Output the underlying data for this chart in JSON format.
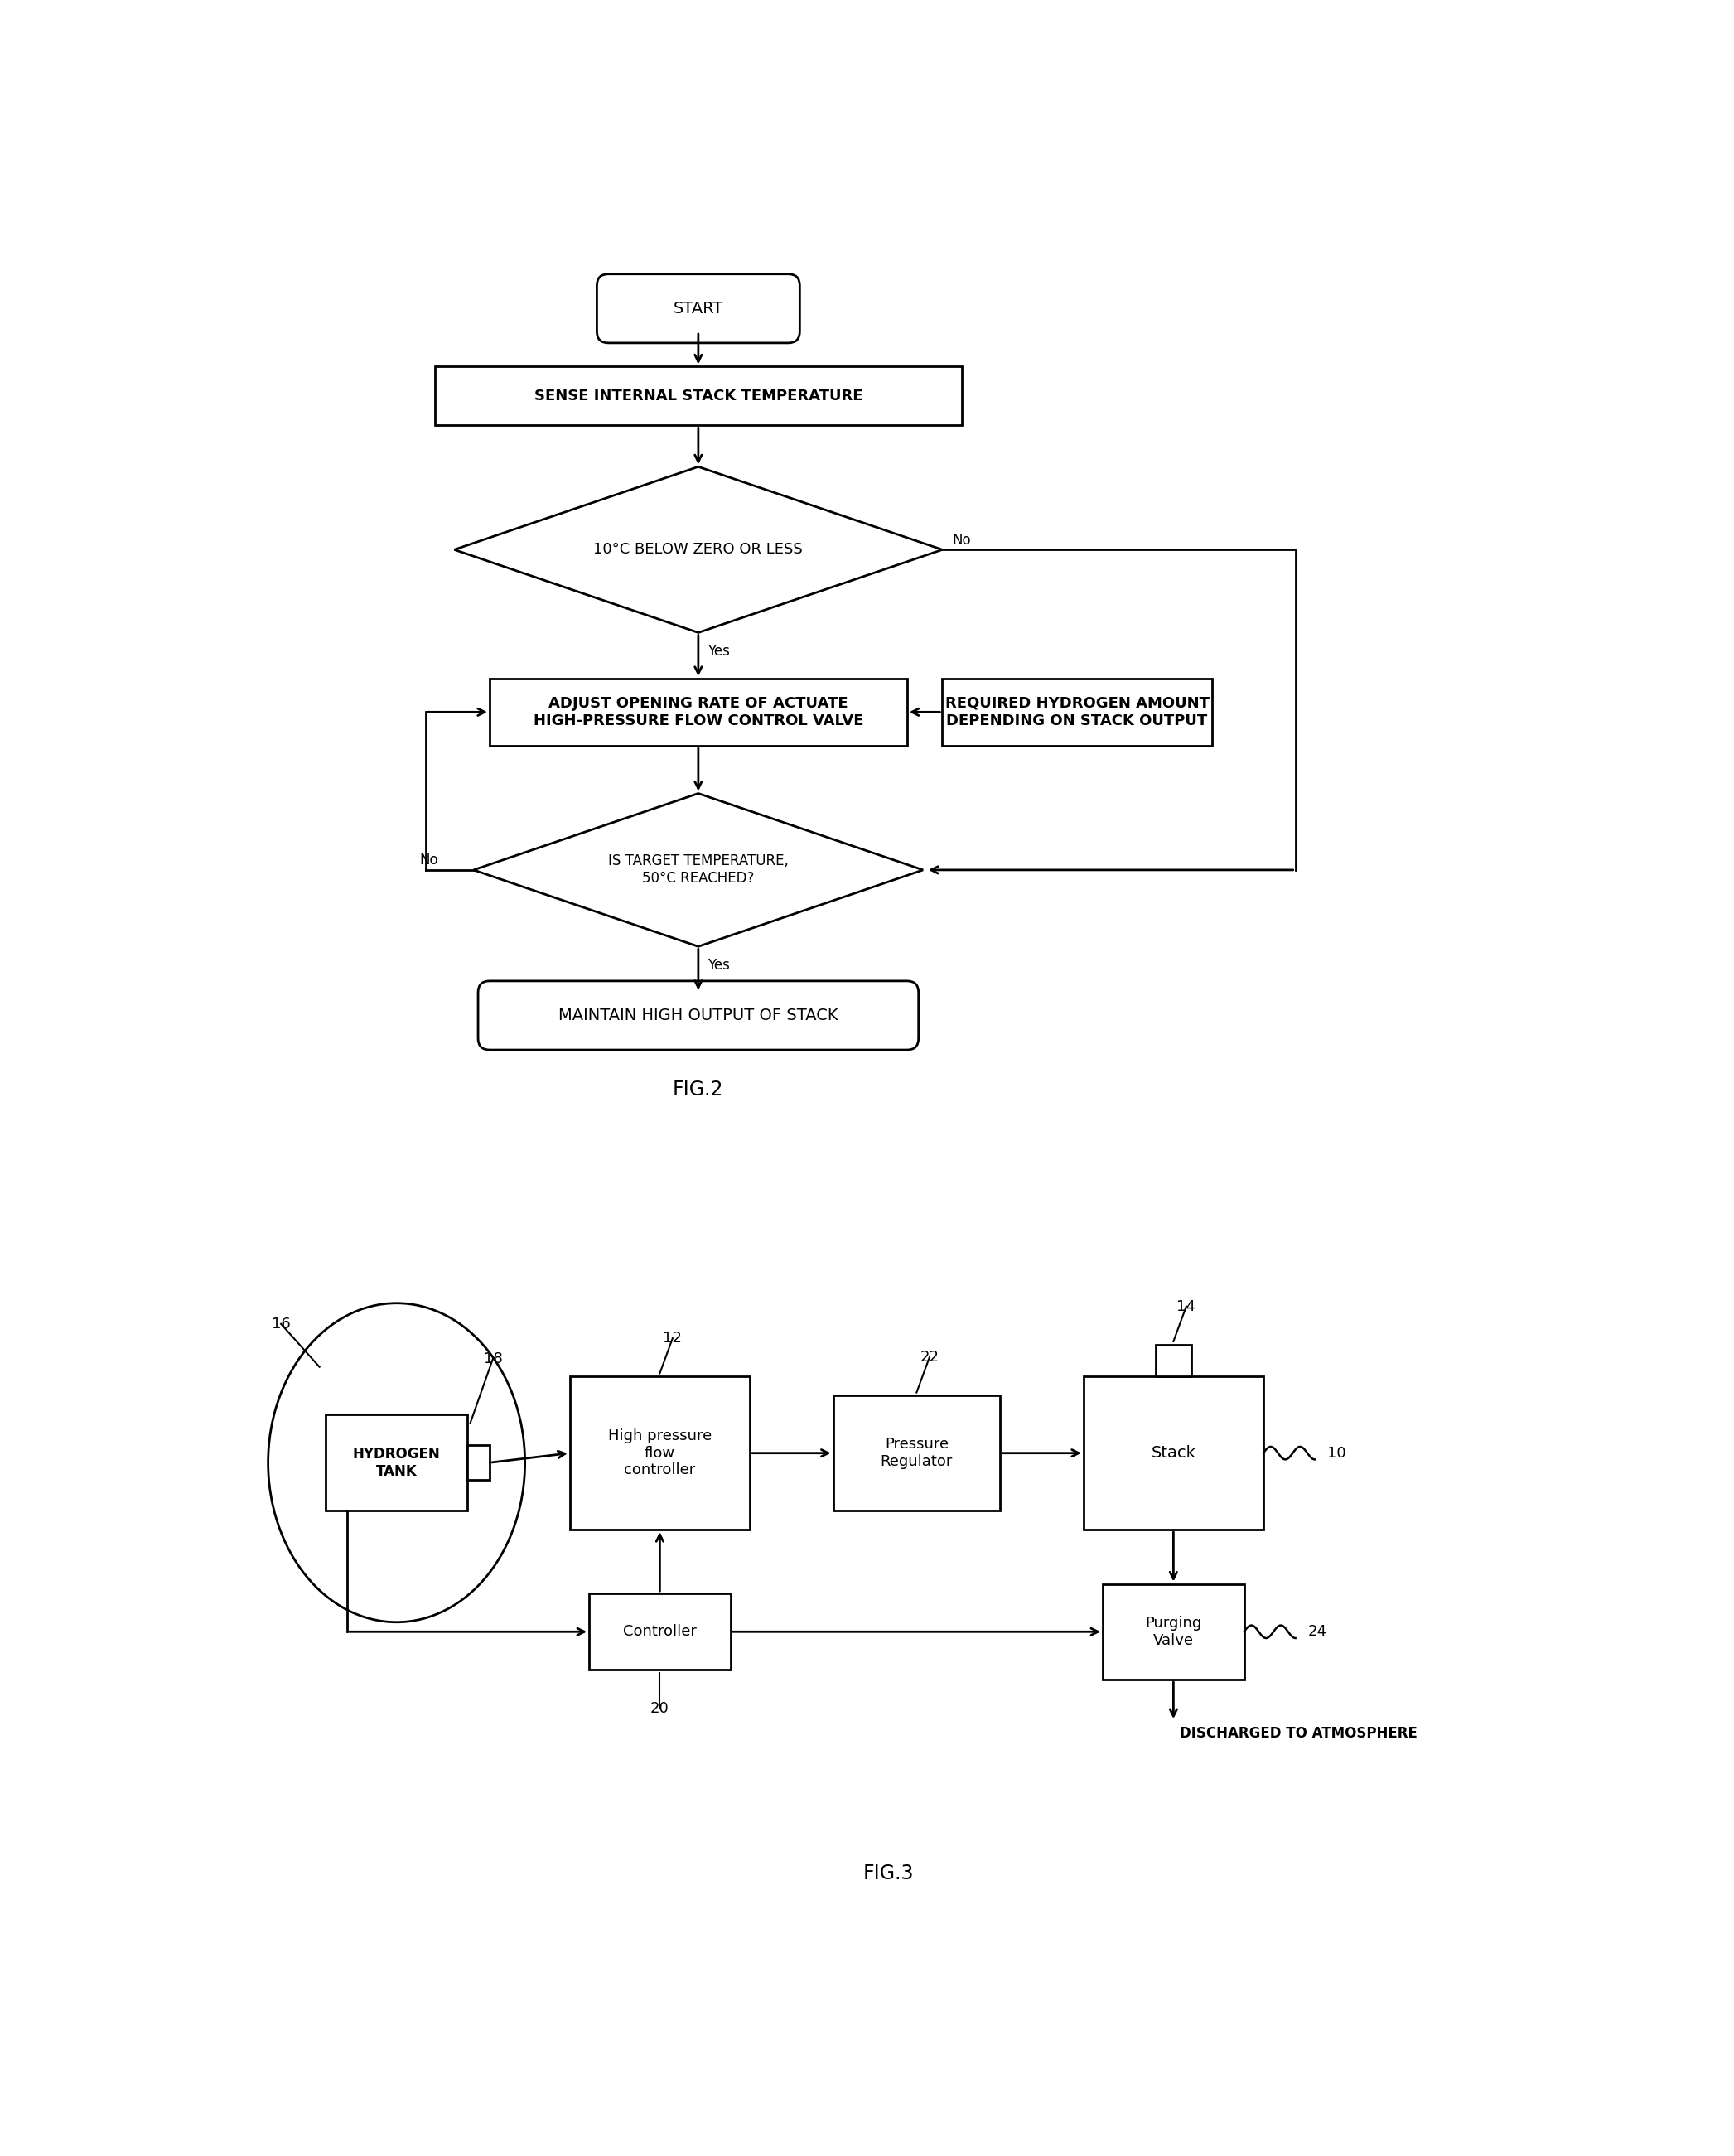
{
  "bg_color": "#ffffff",
  "line_color": "#000000",
  "fig2_title": "FIG.2",
  "fig3_title": "FIG.3",
  "flowchart": {
    "start_label": "START",
    "box1_label": "SENSE INTERNAL STACK TEMPERATURE",
    "diamond1_label": "10°C BELOW ZERO OR LESS",
    "diamond1_no": "No",
    "diamond1_yes": "Yes",
    "box2_label": "ADJUST OPENING RATE OF ACTUATE\nHIGH-PRESSURE FLOW CONTROL VALVE",
    "box_side_label": "REQUIRED HYDROGEN AMOUNT\nDEPENDING ON STACK OUTPUT",
    "diamond2_label": "IS TARGET TEMPERATURE,\n50°C REACHED?",
    "diamond2_no": "No",
    "diamond2_yes": "Yes",
    "end_label": "MAINTAIN HIGH OUTPUT OF STACK"
  },
  "blockdiag": {
    "tank_label": "HYDROGEN\nTANK",
    "hpfc_label": "High pressure\nflow\ncontroller",
    "pr_label": "Pressure\nRegulator",
    "stack_label": "Stack",
    "ctrl_label": "Controller",
    "purge_label": "Purging\nValve",
    "atm_label": "DISCHARGED TO ATMOSPHERE",
    "ref_16": "16",
    "ref_18": "18",
    "ref_12": "12",
    "ref_22": "22",
    "ref_14": "14",
    "ref_10": "10",
    "ref_20": "20",
    "ref_24": "24"
  }
}
